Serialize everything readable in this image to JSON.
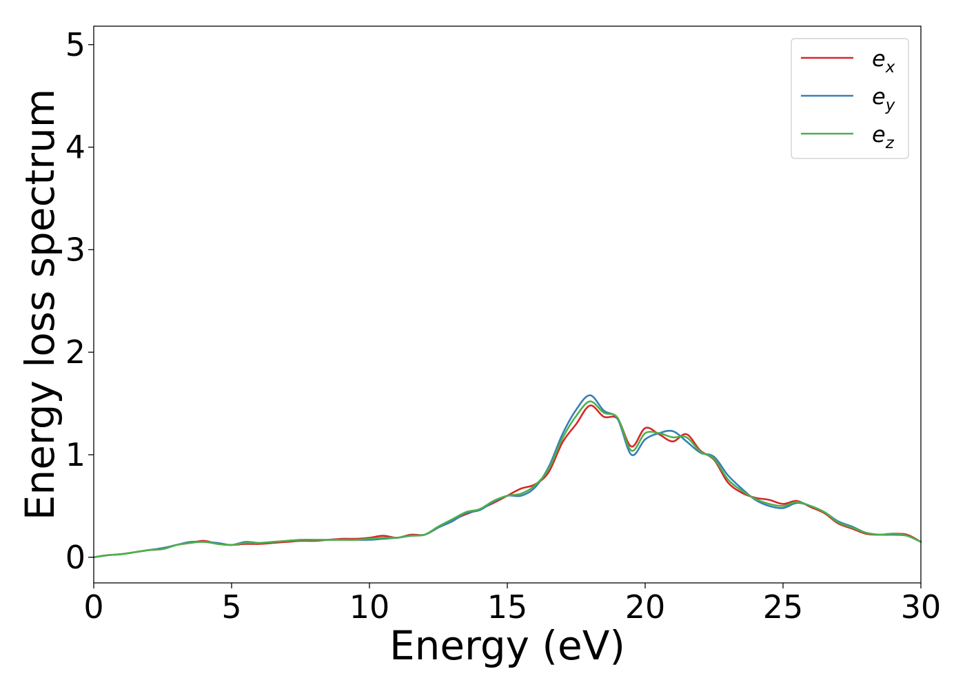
{
  "chart_data": {
    "type": "line",
    "title": "",
    "xlabel": "Energy (eV)",
    "ylabel": "Energy loss spectrum",
    "xlim": [
      0,
      30
    ],
    "ylim": [
      -0.25,
      5.18
    ],
    "xticks": [
      0,
      5,
      10,
      15,
      20,
      25,
      30
    ],
    "yticks": [
      0,
      1,
      2,
      3,
      4,
      5
    ],
    "grid": false,
    "legend_position": "top-right",
    "x": [
      0,
      0.5,
      1,
      1.5,
      2,
      2.5,
      3,
      3.5,
      4,
      4.5,
      5,
      5.5,
      6,
      6.5,
      7,
      7.5,
      8,
      8.5,
      9,
      9.5,
      10,
      10.5,
      11,
      11.5,
      12,
      12.5,
      13,
      13.5,
      14,
      14.5,
      15,
      15.5,
      16,
      16.5,
      17,
      17.5,
      18,
      18.5,
      19,
      19.5,
      20,
      20.5,
      21,
      21.5,
      22,
      22.5,
      23,
      23.5,
      24,
      24.5,
      25,
      25.5,
      26,
      26.5,
      27,
      27.5,
      28,
      28.5,
      29,
      29.5,
      30
    ],
    "series": [
      {
        "name": "e",
        "subscript": "x",
        "color": "#d62728",
        "values": [
          0.0,
          0.02,
          0.03,
          0.05,
          0.07,
          0.08,
          0.12,
          0.14,
          0.16,
          0.13,
          0.12,
          0.13,
          0.13,
          0.14,
          0.15,
          0.16,
          0.16,
          0.17,
          0.18,
          0.18,
          0.19,
          0.21,
          0.19,
          0.22,
          0.22,
          0.29,
          0.36,
          0.42,
          0.47,
          0.53,
          0.6,
          0.67,
          0.71,
          0.83,
          1.12,
          1.3,
          1.48,
          1.37,
          1.35,
          1.08,
          1.26,
          1.2,
          1.13,
          1.2,
          1.04,
          0.95,
          0.73,
          0.63,
          0.58,
          0.56,
          0.52,
          0.55,
          0.49,
          0.43,
          0.33,
          0.28,
          0.23,
          0.22,
          0.23,
          0.22,
          0.15
        ]
      },
      {
        "name": "e",
        "subscript": "y",
        "color": "#377eb8",
        "values": [
          0.0,
          0.02,
          0.03,
          0.05,
          0.07,
          0.09,
          0.12,
          0.15,
          0.15,
          0.14,
          0.12,
          0.15,
          0.14,
          0.15,
          0.16,
          0.17,
          0.17,
          0.17,
          0.17,
          0.17,
          0.17,
          0.18,
          0.19,
          0.21,
          0.22,
          0.29,
          0.35,
          0.43,
          0.46,
          0.54,
          0.6,
          0.6,
          0.68,
          0.88,
          1.2,
          1.44,
          1.58,
          1.43,
          1.35,
          1.0,
          1.15,
          1.21,
          1.23,
          1.13,
          1.02,
          0.98,
          0.8,
          0.67,
          0.56,
          0.5,
          0.48,
          0.53,
          0.5,
          0.44,
          0.35,
          0.3,
          0.24,
          0.22,
          0.22,
          0.21,
          0.15
        ]
      },
      {
        "name": "e",
        "subscript": "z",
        "color": "#4daf4a",
        "values": [
          0.0,
          0.02,
          0.03,
          0.05,
          0.07,
          0.08,
          0.12,
          0.14,
          0.15,
          0.13,
          0.12,
          0.14,
          0.14,
          0.15,
          0.16,
          0.17,
          0.17,
          0.17,
          0.17,
          0.17,
          0.18,
          0.19,
          0.19,
          0.21,
          0.22,
          0.3,
          0.37,
          0.44,
          0.47,
          0.55,
          0.6,
          0.62,
          0.7,
          0.86,
          1.16,
          1.38,
          1.52,
          1.41,
          1.36,
          1.04,
          1.21,
          1.21,
          1.17,
          1.17,
          1.03,
          0.96,
          0.76,
          0.65,
          0.57,
          0.52,
          0.5,
          0.54,
          0.5,
          0.44,
          0.34,
          0.29,
          0.24,
          0.22,
          0.23,
          0.21,
          0.15
        ]
      }
    ]
  }
}
